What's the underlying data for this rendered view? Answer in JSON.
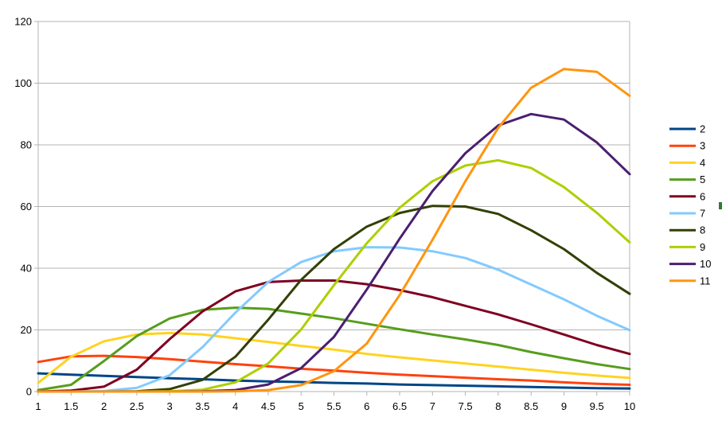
{
  "chart_data": {
    "type": "line",
    "title": "",
    "xlabel": "",
    "ylabel": "",
    "x": [
      1,
      1.5,
      2,
      2.5,
      3,
      3.5,
      4,
      4.5,
      5,
      5.5,
      6,
      6.5,
      7,
      7.5,
      8,
      8.5,
      9,
      9.5,
      10
    ],
    "x_tick_labels": [
      "1",
      "1.5",
      "2",
      "2.5",
      "3",
      "3.5",
      "4",
      "4.5",
      "5",
      "5.5",
      "6",
      "6.5",
      "7",
      "7.5",
      "8",
      "8.5",
      "9",
      "9.5",
      "10"
    ],
    "y_tick_labels": [
      "0",
      "20",
      "40",
      "60",
      "80",
      "100",
      "120"
    ],
    "y_ticks": [
      0,
      20,
      40,
      60,
      80,
      100,
      120
    ],
    "ylim": [
      0,
      120
    ],
    "xlim": [
      1,
      10
    ],
    "grid": "horizontal",
    "legend_position": "right",
    "series": [
      {
        "name": "2",
        "color": "#004586",
        "values": [
          5.9,
          5.5,
          5.1,
          4.7,
          4.3,
          4.0,
          3.6,
          3.3,
          3.1,
          2.8,
          2.6,
          2.3,
          2.1,
          1.9,
          1.7,
          1.5,
          1.3,
          1.1,
          1.0
        ]
      },
      {
        "name": "3",
        "color": "#ff420e",
        "values": [
          9.6,
          11.4,
          11.6,
          11.2,
          10.5,
          9.7,
          8.9,
          8.2,
          7.4,
          6.8,
          6.1,
          5.5,
          5.0,
          4.5,
          4.0,
          3.6,
          3.0,
          2.5,
          2.2
        ]
      },
      {
        "name": "4",
        "color": "#ffd320",
        "values": [
          2.8,
          11.3,
          16.3,
          18.5,
          19.0,
          18.5,
          17.3,
          16.1,
          14.8,
          13.6,
          12.2,
          11.1,
          10.1,
          9.1,
          8.1,
          7.1,
          6.1,
          5.2,
          4.4
        ]
      },
      {
        "name": "5",
        "color": "#579d1c",
        "values": [
          0.5,
          2.2,
          9.9,
          18.0,
          23.7,
          26.5,
          27.2,
          26.8,
          25.3,
          23.8,
          22.0,
          20.2,
          18.5,
          16.9,
          15.1,
          12.8,
          10.8,
          8.9,
          7.3
        ]
      },
      {
        "name": "6",
        "color": "#7e0021",
        "values": [
          0.0,
          0.3,
          1.6,
          7.1,
          17.0,
          26.0,
          32.5,
          35.5,
          36.0,
          36.0,
          34.8,
          32.9,
          30.6,
          27.8,
          25.0,
          21.8,
          18.5,
          15.1,
          12.2
        ]
      },
      {
        "name": "7",
        "color": "#83caff",
        "values": [
          0.0,
          0.0,
          0.2,
          1.2,
          5.3,
          14.4,
          25.6,
          35.5,
          42.0,
          45.5,
          46.8,
          46.7,
          45.5,
          43.3,
          39.5,
          34.7,
          29.9,
          24.6,
          19.9
        ]
      },
      {
        "name": "8",
        "color": "#314004",
        "values": [
          0.0,
          0.0,
          0.0,
          0.1,
          0.8,
          3.8,
          11.3,
          23.3,
          36.2,
          46.2,
          53.5,
          57.9,
          60.2,
          60.0,
          57.6,
          52.3,
          46.2,
          38.5,
          31.7
        ]
      },
      {
        "name": "9",
        "color": "#aecf00",
        "values": [
          0.0,
          0.0,
          0.0,
          0.0,
          0.1,
          0.6,
          3.0,
          9.1,
          20.1,
          34.5,
          48.1,
          59.6,
          68.2,
          73.3,
          75.0,
          72.5,
          66.3,
          58.0,
          48.4
        ]
      },
      {
        "name": "10",
        "color": "#4b1f6f",
        "values": [
          0.0,
          0.0,
          0.0,
          0.0,
          0.0,
          0.1,
          0.5,
          2.3,
          7.6,
          17.7,
          33.1,
          49.6,
          65.0,
          77.3,
          86.3,
          90.0,
          88.2,
          80.8,
          70.5
        ]
      },
      {
        "name": "11",
        "color": "#ff950e",
        "values": [
          0.0,
          0.0,
          0.0,
          0.0,
          0.0,
          0.0,
          0.1,
          0.5,
          2.1,
          6.6,
          15.6,
          31.3,
          49.2,
          68.2,
          85.5,
          98.5,
          104.6,
          103.7,
          95.9
        ]
      }
    ]
  }
}
